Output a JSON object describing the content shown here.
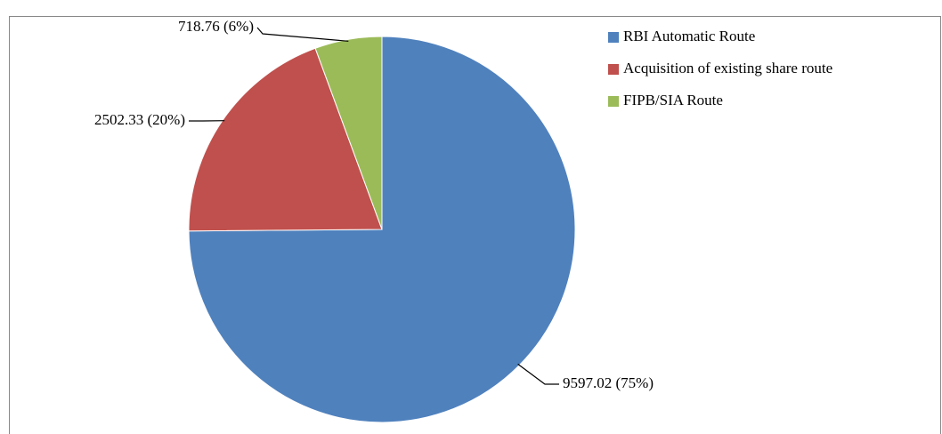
{
  "chart_data": {
    "type": "pie",
    "categories": [
      "RBI Automatic Route",
      "Acquisition of existing share route",
      "FIPB/SIA Route"
    ],
    "values": [
      9597.02,
      2502.33,
      718.76
    ],
    "value_labels": [
      "9597.02 (75%)",
      "2502.33 (20%)",
      "718.76 (6%)"
    ],
    "colors": [
      "#4f81bd",
      "#c0504d",
      "#9bbb59"
    ],
    "legend": "right"
  }
}
